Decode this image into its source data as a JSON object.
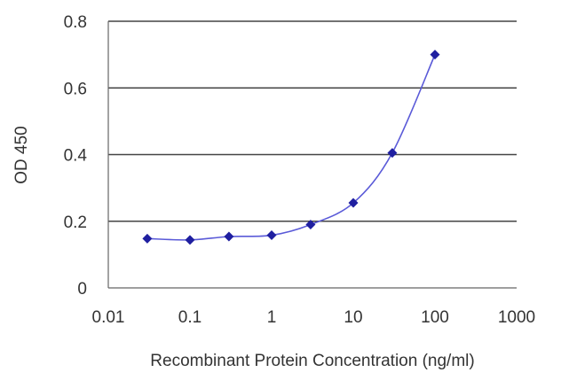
{
  "chart_data": {
    "type": "line",
    "title": "",
    "xlabel": "Recombinant Protein Concentration (ng/ml)",
    "ylabel": "OD 450",
    "xscale": "log",
    "xlim": [
      0.01,
      1000
    ],
    "ylim": [
      0,
      0.8
    ],
    "grid": "horizontal",
    "x_ticks": [
      "0.01",
      "0.1",
      "1",
      "10",
      "100",
      "1000"
    ],
    "y_ticks": [
      "0",
      "0.2",
      "0.4",
      "0.6",
      "0.8"
    ],
    "series": [
      {
        "x": [
          0.03,
          0.1,
          0.3,
          1,
          3,
          10,
          30,
          100
        ],
        "y": [
          0.148,
          0.144,
          0.154,
          0.158,
          0.19,
          0.255,
          0.405,
          0.7
        ],
        "color": "#1f1fa0"
      }
    ]
  }
}
